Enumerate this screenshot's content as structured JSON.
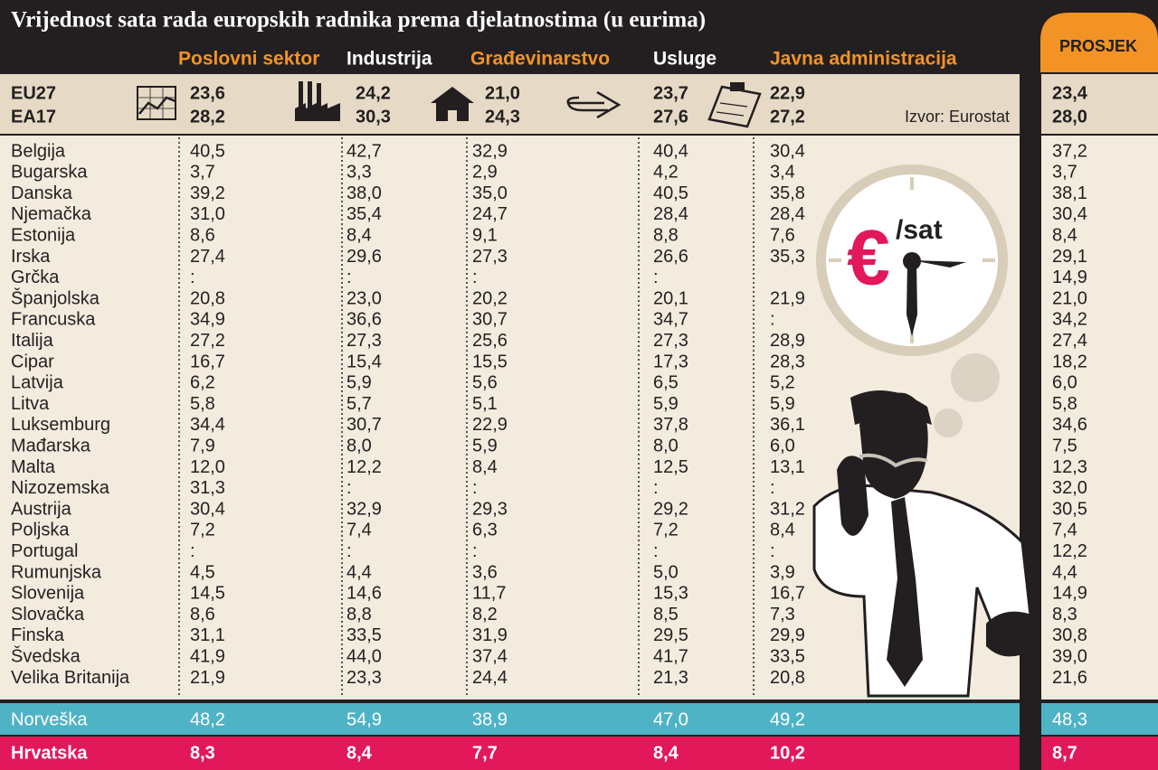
{
  "title": "Vrijednost sata rada europskih radnika prema djelatnostima (u eurima)",
  "average_label": "PROSJEK",
  "source": "Izvor: Eurostat",
  "columns": [
    "Poslovni sektor",
    "Industrija",
    "Građevinarstvo",
    "Usluge",
    "Javna administracija"
  ],
  "summary": [
    {
      "label": "EU27",
      "values": [
        "23,6",
        "24,2",
        "21,0",
        "23,7",
        "22,9"
      ],
      "average": "23,4"
    },
    {
      "label": "EA17",
      "values": [
        "28,2",
        "30,3",
        "24,3",
        "27,6",
        "27,2"
      ],
      "average": "28,0"
    }
  ],
  "rows": [
    {
      "country": "Belgija",
      "values": [
        "40,5",
        "42,7",
        "32,9",
        "40,4",
        "30,4"
      ],
      "average": "37,2"
    },
    {
      "country": "Bugarska",
      "values": [
        "3,7",
        "3,3",
        "2,9",
        "4,2",
        "3,4"
      ],
      "average": "3,7"
    },
    {
      "country": "Danska",
      "values": [
        "39,2",
        "38,0",
        "35,0",
        "40,5",
        "35,8"
      ],
      "average": "38,1"
    },
    {
      "country": "Njemačka",
      "values": [
        "31,0",
        "35,4",
        "24,7",
        "28,4",
        "28,4"
      ],
      "average": "30,4"
    },
    {
      "country": "Estonija",
      "values": [
        "8,6",
        "8,4",
        "9,1",
        "8,8",
        "7,6"
      ],
      "average": "8,4"
    },
    {
      "country": "Irska",
      "values": [
        "27,4",
        "29,6",
        "27,3",
        "26,6",
        "35,3"
      ],
      "average": "29,1"
    },
    {
      "country": "Grčka",
      "values": [
        ":",
        ":",
        ":",
        ":",
        null
      ],
      "average": "14,9"
    },
    {
      "country": "Španjolska",
      "values": [
        "20,8",
        "23,0",
        "20,2",
        "20,1",
        "21,9"
      ],
      "average": "21,0"
    },
    {
      "country": "Francuska",
      "values": [
        "34,9",
        "36,6",
        "30,7",
        "34,7",
        ":"
      ],
      "average": "34,2"
    },
    {
      "country": "Italija",
      "values": [
        "27,2",
        "27,3",
        "25,6",
        "27,3",
        "28,9"
      ],
      "average": "27,4"
    },
    {
      "country": "Cipar",
      "values": [
        "16,7",
        "15,4",
        "15,5",
        "17,3",
        "28,3"
      ],
      "average": "18,2"
    },
    {
      "country": "Latvija",
      "values": [
        "6,2",
        "5,9",
        "5,6",
        "6,5",
        "5,2"
      ],
      "average": "6,0"
    },
    {
      "country": "Litva",
      "values": [
        "5,8",
        "5,7",
        "5,1",
        "5,9",
        "5,9"
      ],
      "average": "5,8"
    },
    {
      "country": "Luksemburg",
      "values": [
        "34,4",
        "30,7",
        "22,9",
        "37,8",
        "36,1"
      ],
      "average": "34,6"
    },
    {
      "country": "Mađarska",
      "values": [
        "7,9",
        "8,0",
        "5,9",
        "8,0",
        "6,0"
      ],
      "average": "7,5"
    },
    {
      "country": "Malta",
      "values": [
        "12,0",
        "12,2",
        "8,4",
        "12,5",
        "13,1"
      ],
      "average": "12,3"
    },
    {
      "country": "Nizozemska",
      "values": [
        "31,3",
        ":",
        ":",
        ":",
        ":"
      ],
      "average": "32,0"
    },
    {
      "country": "Austrija",
      "values": [
        "30,4",
        "32,9",
        "29,3",
        "29,2",
        "31,2"
      ],
      "average": "30,5"
    },
    {
      "country": "Poljska",
      "values": [
        "7,2",
        "7,4",
        "6,3",
        "7,2",
        "8,4"
      ],
      "average": "7,4"
    },
    {
      "country": "Portugal",
      "values": [
        ":",
        ":",
        ":",
        ":",
        ":"
      ],
      "average": "12,2"
    },
    {
      "country": "Rumunjska",
      "values": [
        "4,5",
        "4,4",
        "3,6",
        "5,0",
        "3,9"
      ],
      "average": "4,4"
    },
    {
      "country": "Slovenija",
      "values": [
        "14,5",
        "14,6",
        "11,7",
        "15,3",
        "16,7"
      ],
      "average": "14,9"
    },
    {
      "country": "Slovačka",
      "values": [
        "8,6",
        "8,8",
        "8,2",
        "8,5",
        "7,3"
      ],
      "average": "8,3"
    },
    {
      "country": "Finska",
      "values": [
        "31,1",
        "33,5",
        "31,9",
        "29,5",
        "29,9"
      ],
      "average": "30,8"
    },
    {
      "country": "Švedska",
      "values": [
        "41,9",
        "44,0",
        "37,4",
        "41,7",
        "33,5"
      ],
      "average": "39,0"
    },
    {
      "country": "Velika Britanija",
      "values": [
        "21,9",
        "23,3",
        "24,4",
        "21,3",
        "20,8"
      ],
      "average": "21,6"
    }
  ],
  "highlights": [
    {
      "country": "Norveška",
      "values": [
        "48,2",
        "54,9",
        "38,9",
        "47,0",
        "49,2"
      ],
      "average": "48,3"
    },
    {
      "country": "Hrvatska",
      "values": [
        "8,3",
        "8,4",
        "7,7",
        "8,4",
        "10,2"
      ],
      "average": "8,7"
    }
  ],
  "clock": {
    "symbol": "€",
    "unit": "/sat"
  }
}
